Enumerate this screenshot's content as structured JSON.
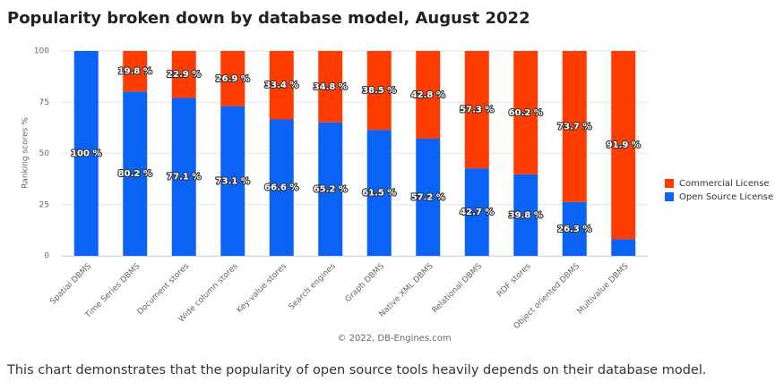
{
  "chart_data": {
    "type": "stacked-bar",
    "title": "Popularity broken down by database model, August 2022",
    "y_label": "Ranking scores %",
    "credit": "© 2022, DB-Engines.com",
    "caption": "This chart demonstrates that the popularity of open source tools heavily depends on their database model.",
    "categories": [
      "Spatial DBMS",
      "Time Series DBMS",
      "Document stores",
      "Wide column stores",
      "Key-value stores",
      "Search engines",
      "Graph DBMS",
      "Native XML DBMS",
      "Relational DBMS",
      "RDF stores",
      "Object oriented DBMS",
      "Multivalue DBMS"
    ],
    "series": [
      {
        "name": "Commercial License",
        "color": "#ff3c00",
        "values": [
          0,
          19.8,
          22.9,
          26.9,
          33.4,
          34.8,
          38.5,
          42.8,
          57.3,
          60.2,
          73.7,
          91.9
        ],
        "value_labels": [
          null,
          "19.8 %",
          "22.9 %",
          "26.9 %",
          "33.4 %",
          "34.8 %",
          "38.5 %",
          "42.8 %",
          "57.3 %",
          "60.2 %",
          "73.7 %",
          "91.9 %"
        ]
      },
      {
        "name": "Open Source License",
        "color": "#0a63f5",
        "values": [
          100,
          80.2,
          77.1,
          73.1,
          66.6,
          65.2,
          61.5,
          57.2,
          42.7,
          39.8,
          26.3,
          8.1
        ],
        "value_labels": [
          "100 %",
          "80.2 %",
          "77.1 %",
          "73.1 %",
          "66.6 %",
          "65.2 %",
          "61.5 %",
          "57.2 %",
          "42.7 %",
          "39.8 %",
          "26.3 %",
          null
        ]
      }
    ],
    "ylim": [
      0,
      100
    ],
    "yticks": [
      0,
      25,
      50,
      75,
      100
    ],
    "grid": true
  }
}
